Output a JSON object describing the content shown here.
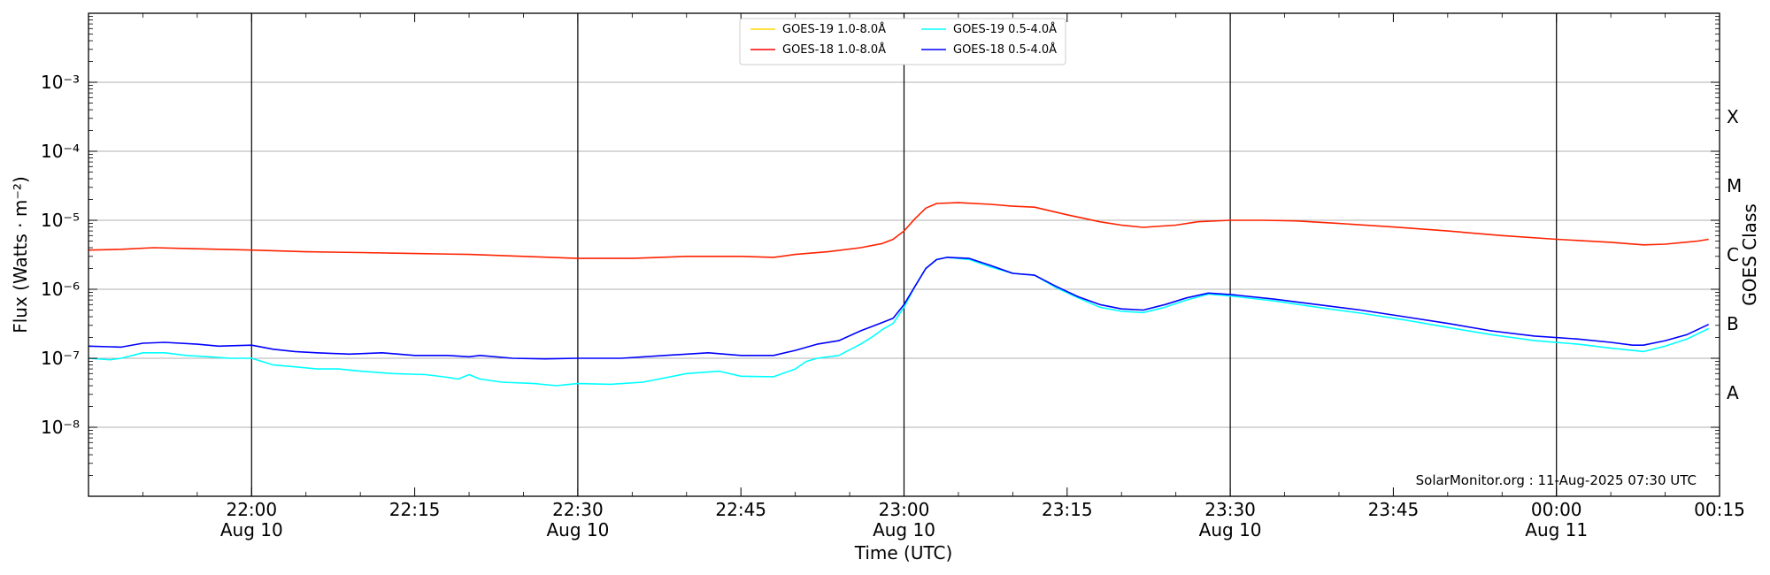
{
  "chart_data": {
    "type": "line",
    "title": "",
    "xlabel": "Time (UTC)",
    "ylabel": "Flux (Watts · m⁻²)",
    "ylabel_right": "GOES Class",
    "y_scale": "log",
    "ylim": [
      1e-09,
      0.01
    ],
    "xlim_minutes_from_2200": [
      -15,
      135
    ],
    "x_ticks": [
      {
        "t": 0,
        "line1": "22:00",
        "line2": "Aug 10"
      },
      {
        "t": 15,
        "line1": "22:15",
        "line2": ""
      },
      {
        "t": 30,
        "line1": "22:30",
        "line2": "Aug 10"
      },
      {
        "t": 45,
        "line1": "22:45",
        "line2": ""
      },
      {
        "t": 60,
        "line1": "23:00",
        "line2": "Aug 10"
      },
      {
        "t": 75,
        "line1": "23:15",
        "line2": ""
      },
      {
        "t": 90,
        "line1": "23:30",
        "line2": "Aug 10"
      },
      {
        "t": 105,
        "line1": "23:45",
        "line2": ""
      },
      {
        "t": 120,
        "line1": "00:00",
        "line2": "Aug 11"
      },
      {
        "t": 135,
        "line1": "00:15",
        "line2": ""
      }
    ],
    "y_ticks": [
      {
        "exp": -8,
        "label": "10⁻⁸"
      },
      {
        "exp": -7,
        "label": "10⁻⁷"
      },
      {
        "exp": -6,
        "label": "10⁻⁶"
      },
      {
        "exp": -5,
        "label": "10⁻⁵"
      },
      {
        "exp": -4,
        "label": "10⁻⁴"
      },
      {
        "exp": -3,
        "label": "10⁻³"
      }
    ],
    "goes_classes": [
      {
        "label": "A",
        "exp": -7.5
      },
      {
        "label": "B",
        "exp": -6.5
      },
      {
        "label": "C",
        "exp": -5.5
      },
      {
        "label": "M",
        "exp": -4.5
      },
      {
        "label": "X",
        "exp": -3.5
      }
    ],
    "vertical_lines_t": [
      0,
      30,
      60,
      90,
      120
    ],
    "grid": "horizontal at each decade",
    "legend_position": "top-center",
    "legend": [
      {
        "name": "GOES-19 1.0-8.0Å",
        "color": "#ffd700"
      },
      {
        "name": "GOES-19 0.5-4.0Å",
        "color": "#00ffff"
      },
      {
        "name": "GOES-18 1.0-8.0Å",
        "color": "#ff0000"
      },
      {
        "name": "GOES-18 0.5-4.0Å",
        "color": "#0000ff"
      }
    ],
    "series": [
      {
        "key": "goes18_long",
        "name": "GOES-18 1.0-8.0Å",
        "color": "#ff2200",
        "points": [
          [
            -15,
            3.7e-06
          ],
          [
            -12,
            3.8e-06
          ],
          [
            -9,
            4e-06
          ],
          [
            -6,
            3.9e-06
          ],
          [
            -3,
            3.8e-06
          ],
          [
            0,
            3.7e-06
          ],
          [
            5,
            3.5e-06
          ],
          [
            10,
            3.4e-06
          ],
          [
            15,
            3.3e-06
          ],
          [
            20,
            3.2e-06
          ],
          [
            25,
            3e-06
          ],
          [
            30,
            2.8e-06
          ],
          [
            35,
            2.8e-06
          ],
          [
            40,
            3e-06
          ],
          [
            45,
            3e-06
          ],
          [
            48,
            2.9e-06
          ],
          [
            50,
            3.2e-06
          ],
          [
            53,
            3.5e-06
          ],
          [
            56,
            4e-06
          ],
          [
            58,
            4.6e-06
          ],
          [
            59,
            5.3e-06
          ],
          [
            60,
            7e-06
          ],
          [
            61,
            1.05e-05
          ],
          [
            62,
            1.5e-05
          ],
          [
            63,
            1.75e-05
          ],
          [
            65,
            1.8e-05
          ],
          [
            68,
            1.7e-05
          ],
          [
            70,
            1.6e-05
          ],
          [
            72,
            1.55e-05
          ],
          [
            75,
            1.2e-05
          ],
          [
            78,
            9.5e-06
          ],
          [
            80,
            8.5e-06
          ],
          [
            82,
            7.9e-06
          ],
          [
            85,
            8.5e-06
          ],
          [
            87,
            9.5e-06
          ],
          [
            90,
            1e-05
          ],
          [
            93,
            1e-05
          ],
          [
            96,
            9.8e-06
          ],
          [
            100,
            9e-06
          ],
          [
            105,
            8e-06
          ],
          [
            110,
            7e-06
          ],
          [
            115,
            6e-06
          ],
          [
            120,
            5.3e-06
          ],
          [
            125,
            4.8e-06
          ],
          [
            128,
            4.4e-06
          ],
          [
            130,
            4.5e-06
          ],
          [
            133,
            5e-06
          ],
          [
            134,
            5.3e-06
          ]
        ]
      },
      {
        "key": "goes19_short",
        "name": "GOES-19 0.5-4.0Å",
        "color": "#00ffff",
        "points": [
          [
            -15,
            1e-07
          ],
          [
            -13,
            9.5e-08
          ],
          [
            -12,
            1e-07
          ],
          [
            -10,
            1.2e-07
          ],
          [
            -8,
            1.2e-07
          ],
          [
            -6,
            1.1e-07
          ],
          [
            -4,
            1.05e-07
          ],
          [
            -2,
            1e-07
          ],
          [
            0,
            1e-07
          ],
          [
            2,
            8e-08
          ],
          [
            4,
            7.5e-08
          ],
          [
            6,
            7e-08
          ],
          [
            8,
            7e-08
          ],
          [
            10,
            6.5e-08
          ],
          [
            13,
            6e-08
          ],
          [
            16,
            5.8e-08
          ],
          [
            18,
            5.3e-08
          ],
          [
            19,
            5e-08
          ],
          [
            20,
            5.8e-08
          ],
          [
            21,
            5e-08
          ],
          [
            23,
            4.5e-08
          ],
          [
            26,
            4.3e-08
          ],
          [
            28,
            4e-08
          ],
          [
            30,
            4.3e-08
          ],
          [
            33,
            4.2e-08
          ],
          [
            36,
            4.5e-08
          ],
          [
            40,
            6e-08
          ],
          [
            43,
            6.5e-08
          ],
          [
            45,
            5.5e-08
          ],
          [
            48,
            5.4e-08
          ],
          [
            50,
            7e-08
          ],
          [
            51,
            9e-08
          ],
          [
            52,
            1e-07
          ],
          [
            54,
            1.1e-07
          ],
          [
            56,
            1.6e-07
          ],
          [
            57,
            2e-07
          ],
          [
            58,
            2.6e-07
          ],
          [
            59,
            3.2e-07
          ],
          [
            60,
            5.5e-07
          ],
          [
            61,
            1.1e-06
          ],
          [
            62,
            2e-06
          ],
          [
            63,
            2.7e-06
          ],
          [
            64,
            2.9e-06
          ],
          [
            66,
            2.7e-06
          ],
          [
            68,
            2.1e-06
          ],
          [
            70,
            1.7e-06
          ],
          [
            72,
            1.6e-06
          ],
          [
            74,
            1.05e-06
          ],
          [
            76,
            7.5e-07
          ],
          [
            78,
            5.5e-07
          ],
          [
            80,
            4.8e-07
          ],
          [
            82,
            4.6e-07
          ],
          [
            84,
            5.5e-07
          ],
          [
            86,
            7e-07
          ],
          [
            88,
            8.5e-07
          ],
          [
            90,
            8e-07
          ],
          [
            94,
            6.8e-07
          ],
          [
            98,
            5.5e-07
          ],
          [
            102,
            4.5e-07
          ],
          [
            106,
            3.6e-07
          ],
          [
            110,
            2.8e-07
          ],
          [
            114,
            2.2e-07
          ],
          [
            118,
            1.8e-07
          ],
          [
            122,
            1.6e-07
          ],
          [
            125,
            1.4e-07
          ],
          [
            127,
            1.3e-07
          ],
          [
            128,
            1.25e-07
          ],
          [
            130,
            1.5e-07
          ],
          [
            132,
            1.9e-07
          ],
          [
            134,
            2.7e-07
          ]
        ]
      },
      {
        "key": "goes18_short",
        "name": "GOES-18 0.5-4.0Å",
        "color": "#0000ff",
        "points": [
          [
            -15,
            1.5e-07
          ],
          [
            -12,
            1.45e-07
          ],
          [
            -10,
            1.65e-07
          ],
          [
            -8,
            1.7e-07
          ],
          [
            -5,
            1.6e-07
          ],
          [
            -3,
            1.5e-07
          ],
          [
            0,
            1.55e-07
          ],
          [
            2,
            1.35e-07
          ],
          [
            4,
            1.25e-07
          ],
          [
            6,
            1.2e-07
          ],
          [
            9,
            1.15e-07
          ],
          [
            12,
            1.2e-07
          ],
          [
            15,
            1.1e-07
          ],
          [
            18,
            1.1e-07
          ],
          [
            20,
            1.05e-07
          ],
          [
            21,
            1.1e-07
          ],
          [
            24,
            1e-07
          ],
          [
            27,
            9.8e-08
          ],
          [
            30,
            1e-07
          ],
          [
            34,
            1e-07
          ],
          [
            38,
            1.1e-07
          ],
          [
            42,
            1.2e-07
          ],
          [
            45,
            1.1e-07
          ],
          [
            48,
            1.1e-07
          ],
          [
            50,
            1.3e-07
          ],
          [
            52,
            1.6e-07
          ],
          [
            54,
            1.8e-07
          ],
          [
            56,
            2.5e-07
          ],
          [
            58,
            3.3e-07
          ],
          [
            59,
            3.8e-07
          ],
          [
            60,
            6e-07
          ],
          [
            61,
            1.1e-06
          ],
          [
            62,
            2e-06
          ],
          [
            63,
            2.7e-06
          ],
          [
            64,
            2.9e-06
          ],
          [
            66,
            2.8e-06
          ],
          [
            68,
            2.2e-06
          ],
          [
            70,
            1.7e-06
          ],
          [
            72,
            1.6e-06
          ],
          [
            74,
            1.1e-06
          ],
          [
            76,
            7.8e-07
          ],
          [
            78,
            6e-07
          ],
          [
            80,
            5.2e-07
          ],
          [
            82,
            5e-07
          ],
          [
            84,
            6e-07
          ],
          [
            86,
            7.5e-07
          ],
          [
            88,
            8.8e-07
          ],
          [
            90,
            8.4e-07
          ],
          [
            94,
            7.2e-07
          ],
          [
            98,
            6e-07
          ],
          [
            102,
            5e-07
          ],
          [
            106,
            4e-07
          ],
          [
            110,
            3.2e-07
          ],
          [
            114,
            2.5e-07
          ],
          [
            118,
            2.1e-07
          ],
          [
            122,
            1.9e-07
          ],
          [
            125,
            1.7e-07
          ],
          [
            127,
            1.55e-07
          ],
          [
            128,
            1.55e-07
          ],
          [
            130,
            1.8e-07
          ],
          [
            132,
            2.2e-07
          ],
          [
            134,
            3.1e-07
          ]
        ]
      }
    ]
  },
  "credit": "SolarMonitor.org : 11-Aug-2025 07:30 UTC"
}
